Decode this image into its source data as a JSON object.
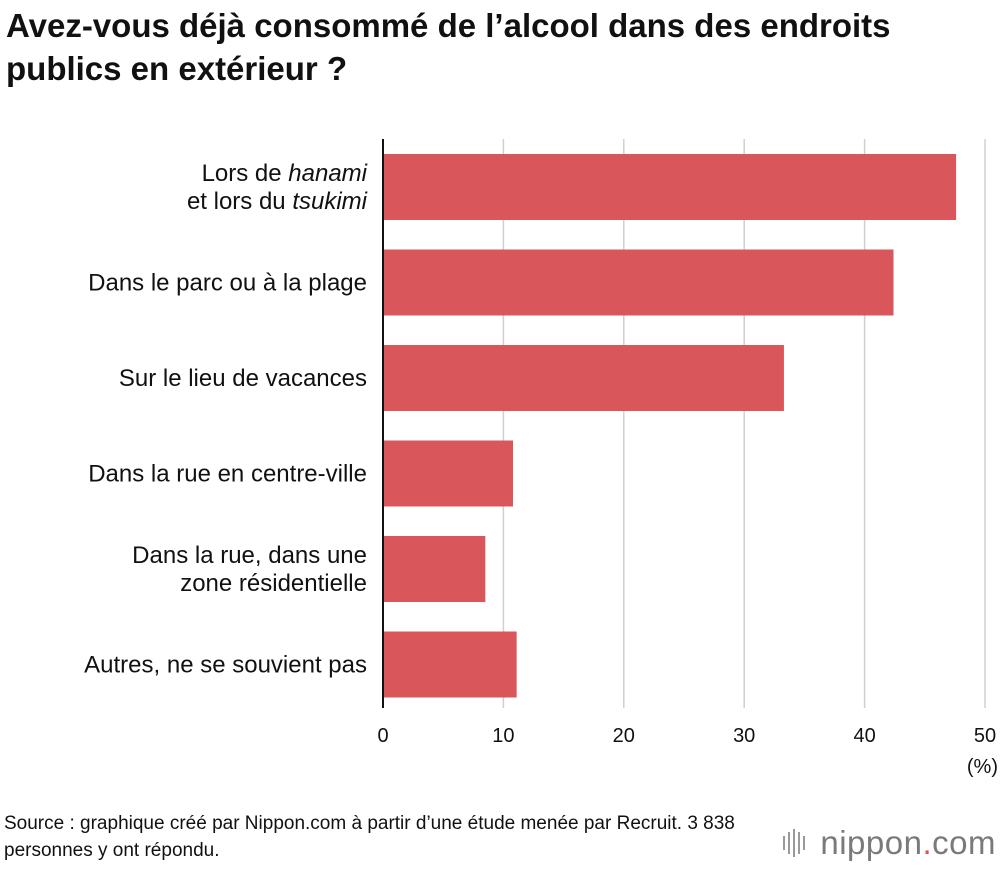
{
  "title": "Avez-vous déjà consommé de l’alcool dans des endroits publics en extérieur ?",
  "source": "Source : graphique créé par Nippon.com à partir d’une étude menée par Recruit. 3 838 personnes y ont répondu.",
  "logo": {
    "name": "nippon",
    "dot": ".",
    "tld": "com"
  },
  "colors": {
    "bar": "#d9575a",
    "grid": "#d0d0d0",
    "axis": "#111111",
    "text": "#111111"
  },
  "chart_data": {
    "type": "bar",
    "orientation": "horizontal",
    "categories": [
      "Lors de hanami et lors du tsukimi",
      "Dans le parc ou à la plage",
      "Sur le lieu de vacances",
      "Dans la rue en centre-ville",
      "Dans la rue, dans une zone résidentielle",
      "Autres, ne se souvient pas"
    ],
    "category_lines": [
      [
        [
          {
            "t": "Lors de ",
            "i": false
          },
          {
            "t": "hanami",
            "i": true
          }
        ],
        [
          {
            "t": "et lors du ",
            "i": false
          },
          {
            "t": "tsukimi",
            "i": true
          }
        ]
      ],
      [
        [
          {
            "t": "Dans le parc ou à la plage",
            "i": false
          }
        ]
      ],
      [
        [
          {
            "t": "Sur le lieu de vacances",
            "i": false
          }
        ]
      ],
      [
        [
          {
            "t": "Dans la rue en centre-ville",
            "i": false
          }
        ]
      ],
      [
        [
          {
            "t": "Dans la rue, dans une",
            "i": false
          }
        ],
        [
          {
            "t": "zone résidentielle",
            "i": false
          }
        ]
      ],
      [
        [
          {
            "t": "Autres, ne se souvient pas",
            "i": false
          }
        ]
      ]
    ],
    "values": [
      47.6,
      42.4,
      33.3,
      10.8,
      8.5,
      11.1
    ],
    "xlim": [
      0,
      50
    ],
    "xticks": [
      0,
      10,
      20,
      30,
      40,
      50
    ],
    "xunit": "(%)",
    "grid": true,
    "legend": "none"
  }
}
